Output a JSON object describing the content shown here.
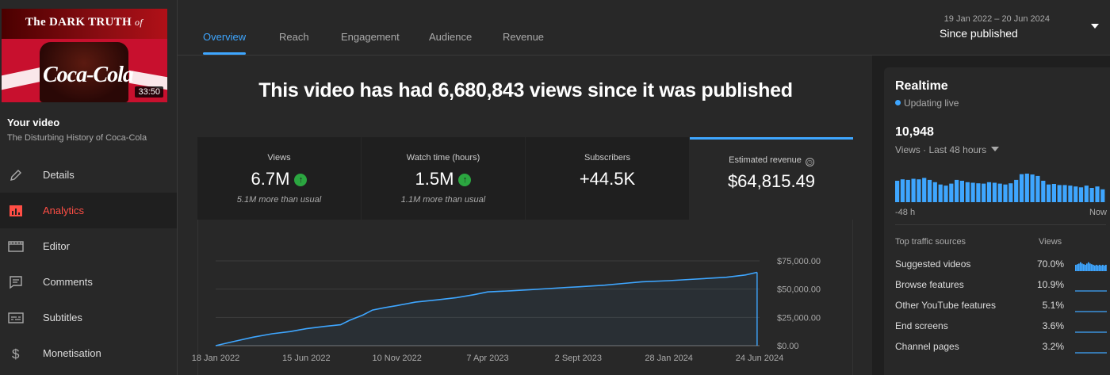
{
  "video": {
    "thumbnail_title": "The DARK TRUTH",
    "thumbnail_title_suffix": "of",
    "thumbnail_brand": "Coca-Cola",
    "duration": "33:50",
    "section_label": "Your video",
    "title": "The Disturbing History of Coca-Cola"
  },
  "sidebar": {
    "items": [
      {
        "label": "Details",
        "icon": "pencil-icon",
        "active": false
      },
      {
        "label": "Analytics",
        "icon": "analytics-icon",
        "active": true
      },
      {
        "label": "Editor",
        "icon": "film-icon",
        "active": false
      },
      {
        "label": "Comments",
        "icon": "comment-icon",
        "active": false
      },
      {
        "label": "Subtitles",
        "icon": "subtitles-icon",
        "active": false
      },
      {
        "label": "Monetisation",
        "icon": "dollar-icon",
        "active": false
      }
    ]
  },
  "tabs": [
    {
      "label": "Overview",
      "active": true
    },
    {
      "label": "Reach",
      "active": false
    },
    {
      "label": "Engagement",
      "active": false
    },
    {
      "label": "Audience",
      "active": false
    },
    {
      "label": "Revenue",
      "active": false
    }
  ],
  "date_range": {
    "range": "19 Jan 2022 – 20 Jun 2024",
    "label": "Since published"
  },
  "headline": "This video has had 6,680,843 views since it was published",
  "metrics": [
    {
      "label": "Views",
      "value": "6.7M",
      "trend": "up",
      "sub": "5.1M more than usual"
    },
    {
      "label": "Watch time (hours)",
      "value": "1.5M",
      "trend": "up",
      "sub": "1.1M more than usual"
    },
    {
      "label": "Subscribers",
      "value": "+44.5K",
      "trend": "",
      "sub": ""
    },
    {
      "label": "Estimated revenue",
      "value": "$64,815.49",
      "trend": "",
      "sub": "",
      "selected": true
    }
  ],
  "chart_data": {
    "type": "line",
    "series": [
      {
        "values_x": [
          "2022-01-18",
          "2022-02-15",
          "2022-03-20",
          "2022-04-20",
          "2022-05-20",
          "2022-06-15",
          "2022-07-15",
          "2022-08-10",
          "2022-08-25",
          "2022-09-15",
          "2022-10-01",
          "2022-10-20",
          "2022-11-10",
          "2022-12-10",
          "2023-01-15",
          "2023-02-15",
          "2023-03-15",
          "2023-04-07",
          "2023-05-15",
          "2023-06-15",
          "2023-07-15",
          "2023-08-15",
          "2023-09-02",
          "2023-10-15",
          "2023-11-15",
          "2023-12-15",
          "2024-01-28",
          "2024-03-01",
          "2024-04-01",
          "2024-05-01",
          "2024-06-01",
          "2024-06-20"
        ],
        "values_y": [
          0,
          3500,
          7500,
          10500,
          12500,
          15000,
          17000,
          18500,
          22500,
          27000,
          31500,
          33500,
          35500,
          38500,
          40500,
          42500,
          45000,
          47500,
          48500,
          49500,
          50500,
          51500,
          52000,
          53500,
          55000,
          56500,
          57500,
          58500,
          59500,
          60500,
          62500,
          64815
        ]
      }
    ],
    "x_tick_labels": [
      "18 Jan 2022",
      "15 Jun 2022",
      "10 Nov 2022",
      "7 Apr 2023",
      "2 Sept 2023",
      "28 Jan 2024",
      "24 Jun 2024"
    ],
    "x_ticks": [
      "2022-01-18",
      "2022-06-15",
      "2022-11-10",
      "2023-04-07",
      "2023-09-02",
      "2024-01-28",
      "2024-06-24"
    ],
    "y_tick_labels": [
      "$75,000.00",
      "$50,000.00",
      "$25,000.00",
      "$0.00"
    ],
    "y_ticks": [
      75000,
      50000,
      25000,
      0
    ],
    "ylim": [
      0,
      75000
    ],
    "grid": true,
    "color": "#3ea6ff"
  },
  "realtime": {
    "title": "Realtime",
    "status": "Updating live",
    "count": "10,948",
    "views_label": "Views · Last 48 hours",
    "start_label": "-48 h",
    "end_label": "Now",
    "bars": [
      0.75,
      0.8,
      0.78,
      0.82,
      0.8,
      0.85,
      0.78,
      0.7,
      0.62,
      0.58,
      0.65,
      0.78,
      0.75,
      0.7,
      0.68,
      0.66,
      0.65,
      0.7,
      0.68,
      0.65,
      0.62,
      0.66,
      0.78,
      0.98,
      1.0,
      0.97,
      0.92,
      0.75,
      0.62,
      0.64,
      0.6,
      0.6,
      0.58,
      0.55,
      0.52,
      0.58,
      0.5,
      0.55,
      0.45
    ],
    "color": "#3ea6ff"
  },
  "traffic_sources": {
    "heading": "Top traffic sources",
    "views_heading": "Views",
    "rows": [
      {
        "name": "Suggested videos",
        "value": "70.0%",
        "share": 0.7
      },
      {
        "name": "Browse features",
        "value": "10.9%",
        "share": 0.109
      },
      {
        "name": "Other YouTube features",
        "value": "5.1%",
        "share": 0.051
      },
      {
        "name": "End screens",
        "value": "3.6%",
        "share": 0.036
      },
      {
        "name": "Channel pages",
        "value": "3.2%",
        "share": 0.032
      }
    ]
  }
}
